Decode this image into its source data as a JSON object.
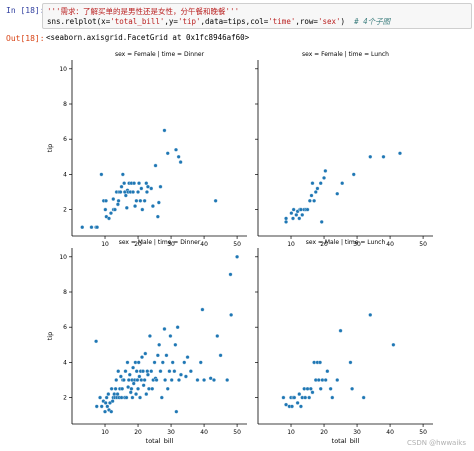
{
  "cell": {
    "in_prompt": "In [18]:",
    "out_prompt": "Out[18]:",
    "code_line_1": "'''需求：了解买单的是男性还是女性，分午餐和晚餐'''",
    "code_line_2": {
      "part1": "sns.relplot(x=",
      "x": "'total_bill'",
      "part2": ",y=",
      "y": "'tip'",
      "part3": ",data=tips,col=",
      "col": "'time'",
      "part4": ",row=",
      "row": "'sex'",
      "part5": ")  ",
      "comment": "# 4个子图"
    },
    "output": "<seaborn.axisgrid.FacetGrid at 0x1fc8946af60>"
  },
  "watermark": "CSDN @hwwaiks",
  "chart_data": {
    "type": "scatter",
    "color": "#1f77b4",
    "xlabel": "total_bill",
    "ylabel": "tip",
    "xlim": [
      0,
      53
    ],
    "ylim": [
      0.5,
      10.5
    ],
    "xticks": [
      10,
      20,
      30,
      40,
      50
    ],
    "yticks": [
      2,
      4,
      6,
      8,
      10
    ],
    "grid": false,
    "panels": [
      {
        "title": "sex = Female | time = Dinner",
        "points": [
          [
            3.1,
            1
          ],
          [
            5.9,
            1
          ],
          [
            7.3,
            1
          ],
          [
            7.6,
            1
          ],
          [
            8.9,
            4
          ],
          [
            9.6,
            2.5
          ],
          [
            10.1,
            2
          ],
          [
            10.3,
            2.5
          ],
          [
            10.4,
            1.6
          ],
          [
            11.2,
            1.5
          ],
          [
            11.8,
            1.8
          ],
          [
            12.5,
            2.6
          ],
          [
            12.6,
            2
          ],
          [
            13,
            2
          ],
          [
            13.5,
            3
          ],
          [
            13.9,
            2.3
          ],
          [
            14.1,
            2.5
          ],
          [
            14.3,
            3
          ],
          [
            14.7,
            3
          ],
          [
            15,
            3.3
          ],
          [
            15.4,
            4
          ],
          [
            15.8,
            3.5
          ],
          [
            16,
            3
          ],
          [
            16.3,
            2.8
          ],
          [
            16.6,
            2.1
          ],
          [
            16.8,
            3.1
          ],
          [
            17,
            3
          ],
          [
            17.3,
            3.5
          ],
          [
            17.7,
            3
          ],
          [
            18,
            3.5
          ],
          [
            18.5,
            3
          ],
          [
            18.8,
            3.5
          ],
          [
            19.1,
            2.2
          ],
          [
            19.5,
            2.5
          ],
          [
            20,
            3
          ],
          [
            20.3,
            3.5
          ],
          [
            20.7,
            2.5
          ],
          [
            21,
            3.2
          ],
          [
            21.3,
            2
          ],
          [
            22,
            2.5
          ],
          [
            22.5,
            3.5
          ],
          [
            22.7,
            3
          ],
          [
            23,
            3.3
          ],
          [
            24,
            3.2
          ],
          [
            24.5,
            2.2
          ],
          [
            25.3,
            4.5
          ],
          [
            26,
            1.6
          ],
          [
            26.3,
            2.4
          ],
          [
            26.8,
            3.3
          ],
          [
            28,
            6.5
          ],
          [
            29,
            5.2
          ],
          [
            31.5,
            5.4
          ],
          [
            32.3,
            5
          ],
          [
            32.9,
            4.7
          ],
          [
            43.5,
            2.5
          ]
        ]
      },
      {
        "title": "sex = Female | time = Lunch",
        "points": [
          [
            8.5,
            1.3
          ],
          [
            8.5,
            1.5
          ],
          [
            10.1,
            1.8
          ],
          [
            10.6,
            1.5
          ],
          [
            10.8,
            2
          ],
          [
            11.6,
            1.7
          ],
          [
            12,
            1.9
          ],
          [
            12.5,
            1.5
          ],
          [
            12.7,
            2
          ],
          [
            13,
            2
          ],
          [
            13.4,
            1.7
          ],
          [
            14,
            2
          ],
          [
            14.5,
            2
          ],
          [
            15,
            2
          ],
          [
            15.7,
            2.5
          ],
          [
            16.2,
            2.8
          ],
          [
            16.5,
            3.5
          ],
          [
            17,
            2.5
          ],
          [
            17.5,
            3
          ],
          [
            18,
            3.2
          ],
          [
            19,
            3.5
          ],
          [
            19.3,
            1.3
          ],
          [
            20,
            3.8
          ],
          [
            20.4,
            4.2
          ],
          [
            24,
            2.9
          ],
          [
            25.5,
            3.5
          ],
          [
            29,
            4
          ],
          [
            34,
            5
          ],
          [
            38,
            5
          ],
          [
            43,
            5.2
          ]
        ]
      },
      {
        "title": "sex = Male | time = Dinner",
        "points": [
          [
            7.3,
            5.2
          ],
          [
            7.5,
            1.5
          ],
          [
            8.5,
            2
          ],
          [
            9,
            1.5
          ],
          [
            9.5,
            1.8
          ],
          [
            10,
            1.2
          ],
          [
            10.2,
            1.7
          ],
          [
            10.5,
            2
          ],
          [
            10.7,
            1.5
          ],
          [
            11,
            2.2
          ],
          [
            11.2,
            1.3
          ],
          [
            11.5,
            1.7
          ],
          [
            11.9,
            1.2
          ],
          [
            12,
            2.5
          ],
          [
            12.3,
            1.8
          ],
          [
            12.5,
            2
          ],
          [
            12.8,
            2.2
          ],
          [
            13,
            2
          ],
          [
            13.2,
            2.5
          ],
          [
            13.4,
            3
          ],
          [
            13.6,
            2
          ],
          [
            13.8,
            2.2
          ],
          [
            14,
            3.5
          ],
          [
            14.3,
            2
          ],
          [
            14.5,
            2.5
          ],
          [
            14.8,
            3.2
          ],
          [
            15,
            2
          ],
          [
            15.2,
            2.5
          ],
          [
            15.4,
            3
          ],
          [
            15.7,
            3
          ],
          [
            16,
            2
          ],
          [
            16.2,
            3.5
          ],
          [
            16.5,
            2
          ],
          [
            16.8,
            4
          ],
          [
            17,
            2.6
          ],
          [
            17.2,
            3
          ],
          [
            17.5,
            3.3
          ],
          [
            17.8,
            2.3
          ],
          [
            18,
            2.5
          ],
          [
            18.2,
            3
          ],
          [
            18.3,
            2
          ],
          [
            18.5,
            3.7
          ],
          [
            18.7,
            2.8
          ],
          [
            19,
            3
          ],
          [
            19.2,
            4
          ],
          [
            19.4,
            2.2
          ],
          [
            19.6,
            3.5
          ],
          [
            19.8,
            3
          ],
          [
            20,
            2.5
          ],
          [
            20.2,
            4
          ],
          [
            20.4,
            3.2
          ],
          [
            20.6,
            2
          ],
          [
            20.8,
            3.5
          ],
          [
            21,
            3
          ],
          [
            21.2,
            4.3
          ],
          [
            21.5,
            3.5
          ],
          [
            21.7,
            2.7
          ],
          [
            22,
            3
          ],
          [
            22.2,
            4.5
          ],
          [
            22.5,
            2.2
          ],
          [
            22.8,
            3.5
          ],
          [
            23,
            3.3
          ],
          [
            23.3,
            2.5
          ],
          [
            23.6,
            5.5
          ],
          [
            24,
            3.5
          ],
          [
            24.3,
            2.5
          ],
          [
            24.6,
            3
          ],
          [
            25,
            4
          ],
          [
            25.3,
            3.1
          ],
          [
            25.6,
            3
          ],
          [
            26,
            4.4
          ],
          [
            26.4,
            5
          ],
          [
            26.8,
            3.5
          ],
          [
            27.2,
            2
          ],
          [
            27.5,
            4
          ],
          [
            28,
            5.9
          ],
          [
            28.2,
            3
          ],
          [
            28.6,
            4.4
          ],
          [
            29,
            2.5
          ],
          [
            29.5,
            3.5
          ],
          [
            29.8,
            5.5
          ],
          [
            30.2,
            3
          ],
          [
            30.5,
            4
          ],
          [
            31,
            3.5
          ],
          [
            31.3,
            5
          ],
          [
            31.6,
            1.2
          ],
          [
            32,
            6
          ],
          [
            32.4,
            3
          ],
          [
            33,
            3.3
          ],
          [
            34,
            4
          ],
          [
            34.5,
            3.2
          ],
          [
            35,
            4.3
          ],
          [
            36,
            3.5
          ],
          [
            38,
            3
          ],
          [
            39,
            4
          ],
          [
            39.5,
            7
          ],
          [
            40,
            3
          ],
          [
            42,
            3.1
          ],
          [
            43,
            3
          ],
          [
            44,
            5.5
          ],
          [
            45,
            4.4
          ],
          [
            47,
            3
          ],
          [
            48,
            9
          ],
          [
            48.2,
            6.7
          ],
          [
            50,
            10
          ]
        ]
      },
      {
        "title": "sex = Male | time = Lunch",
        "points": [
          [
            7.7,
            2
          ],
          [
            8.5,
            1.6
          ],
          [
            9.5,
            1.5
          ],
          [
            10,
            2
          ],
          [
            10.3,
            1.5
          ],
          [
            10.7,
            2
          ],
          [
            11,
            2
          ],
          [
            12,
            1.7
          ],
          [
            12.5,
            2.2
          ],
          [
            13,
            1.5
          ],
          [
            13.4,
            2
          ],
          [
            14,
            2.5
          ],
          [
            14.3,
            2
          ],
          [
            15,
            2.5
          ],
          [
            15.5,
            2
          ],
          [
            16,
            2.5
          ],
          [
            16.5,
            2.3
          ],
          [
            17,
            4
          ],
          [
            17.5,
            3
          ],
          [
            18,
            4
          ],
          [
            18.4,
            3
          ],
          [
            18.8,
            4
          ],
          [
            19,
            2.5
          ],
          [
            19.5,
            3
          ],
          [
            20.5,
            3
          ],
          [
            21,
            3.5
          ],
          [
            22,
            2.5
          ],
          [
            22.5,
            2
          ],
          [
            24,
            3
          ],
          [
            25,
            5.8
          ],
          [
            28,
            4
          ],
          [
            28.5,
            2.5
          ],
          [
            32,
            2
          ],
          [
            34,
            6.7
          ],
          [
            41,
            5
          ]
        ]
      }
    ]
  }
}
